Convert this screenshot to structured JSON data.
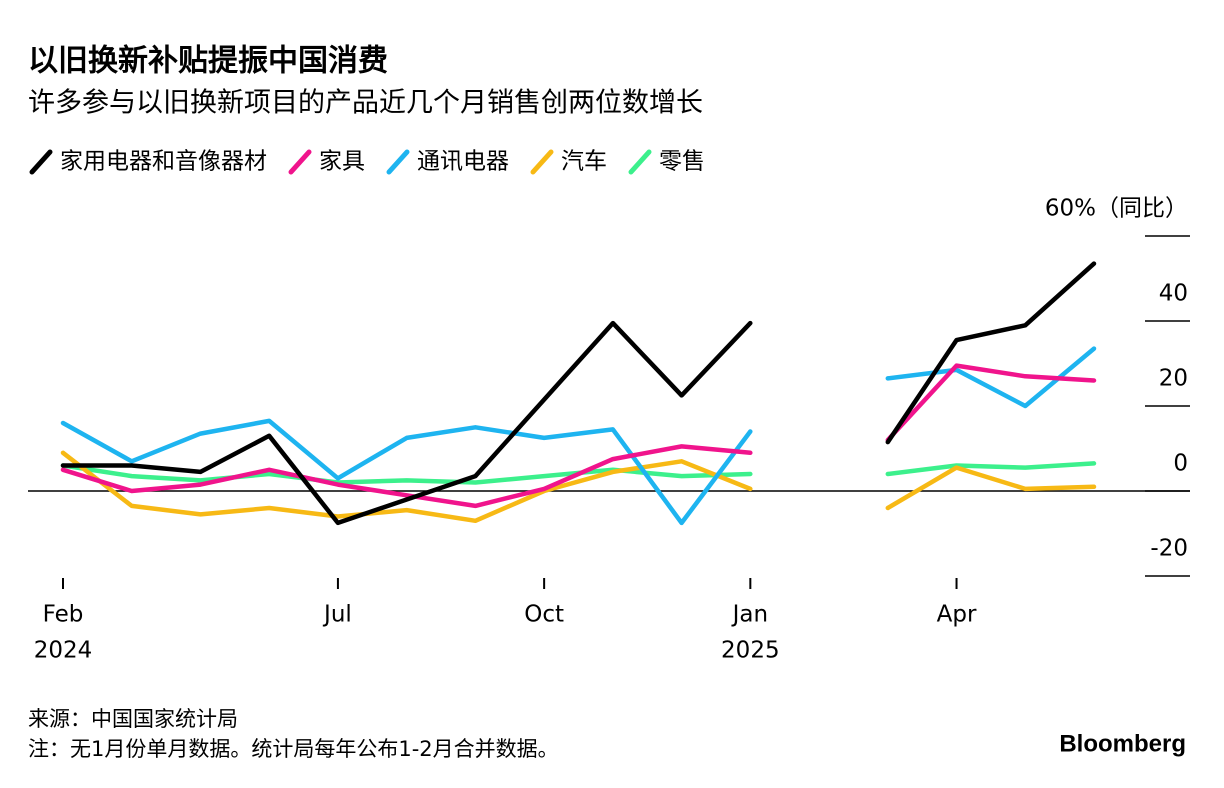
{
  "chart_data": {
    "type": "line",
    "title": "以旧换新补贴提振中国消费",
    "subtitle": "许多参与以旧换新项目的产品近几个月销售创两位数增长",
    "categories": [
      "Feb",
      null,
      null,
      null,
      "Jul",
      null,
      null,
      "Oct",
      null,
      null,
      "Jan",
      null,
      null,
      "Apr",
      null,
      null
    ],
    "years": [
      "2024",
      null,
      null,
      null,
      null,
      null,
      null,
      null,
      null,
      null,
      "2025",
      null,
      null,
      null,
      null,
      null
    ],
    "series": [
      {
        "name": "家用电器和音像器材",
        "color": "#000000",
        "values": [
          6,
          6,
          4.5,
          13,
          -7.5,
          -2,
          3.5,
          21.5,
          39.5,
          22.5,
          39.5,
          null,
          11.5,
          35.5,
          39,
          53.5
        ]
      },
      {
        "name": "家具",
        "color": "#f0148c",
        "values": [
          5,
          0,
          1.5,
          5,
          1.5,
          -1,
          -3.5,
          0.5,
          7.5,
          10.5,
          9,
          null,
          12,
          29.5,
          27,
          26
        ]
      },
      {
        "name": "通讯电器",
        "color": "#1eb4f0",
        "values": [
          16,
          7,
          13.5,
          16.5,
          3,
          12.5,
          15,
          12.5,
          14.5,
          -7.5,
          14,
          null,
          26.5,
          28.5,
          20,
          33.5
        ]
      },
      {
        "name": "汽车",
        "color": "#f7b915",
        "values": [
          9,
          -3.5,
          -5.5,
          -4,
          -6,
          -4.5,
          -7,
          0,
          4.5,
          7,
          0.5,
          null,
          -4,
          5.5,
          0.5,
          1
        ]
      },
      {
        "name": "零售",
        "color": "#3cf08c",
        "values": [
          6,
          3.5,
          2.5,
          4,
          2,
          2.5,
          2,
          3.5,
          5,
          3.5,
          4,
          null,
          4,
          6,
          5.5,
          6.5
        ]
      }
    ],
    "ylim": [
      -20,
      60
    ],
    "yticks": [
      {
        "value": 60,
        "label": "60%（同比）"
      },
      40,
      20,
      0,
      -20
    ],
    "source": "来源：中国国家统计局",
    "note": "注：无1月份单月数据。统计局每年公布1-2月合并数据。",
    "brand": "Bloomberg"
  }
}
